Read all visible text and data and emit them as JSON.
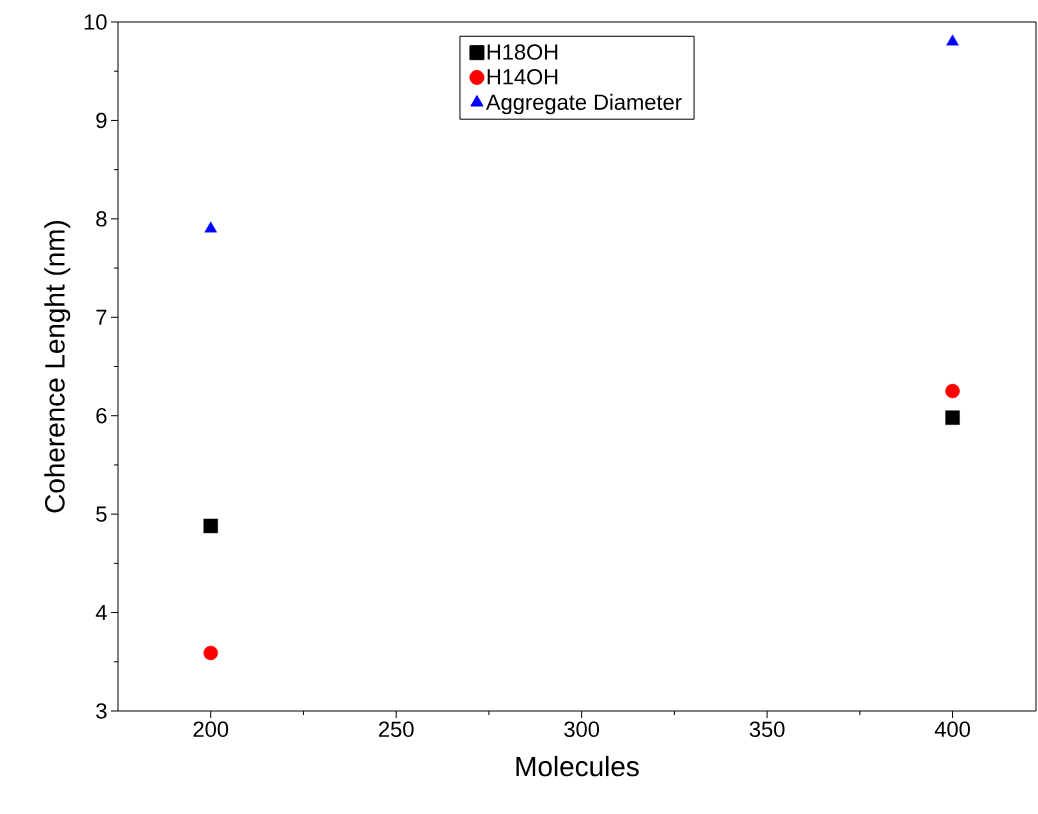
{
  "chart_data": {
    "type": "scatter",
    "xlabel": "Molecules",
    "ylabel": "Coherence Lenght (nm)",
    "xlim": [
      175,
      422.5
    ],
    "xticks": [
      200,
      250,
      300,
      350,
      400
    ],
    "ylim": [
      3,
      10
    ],
    "yticks": [
      3,
      4,
      5,
      6,
      7,
      8,
      9,
      10
    ],
    "legend": "top",
    "x": [
      200,
      400
    ],
    "series": [
      {
        "name": "H18OH",
        "color": "#000000",
        "marker": "square",
        "values": [
          4.88,
          5.98
        ]
      },
      {
        "name": "H14OH",
        "color": "#ff0000",
        "marker": "circle",
        "values": [
          3.59,
          6.25
        ]
      },
      {
        "name": "Aggregate Diameter",
        "color": "#0000ff",
        "marker": "triangle",
        "values": [
          7.9,
          9.8
        ]
      }
    ]
  }
}
